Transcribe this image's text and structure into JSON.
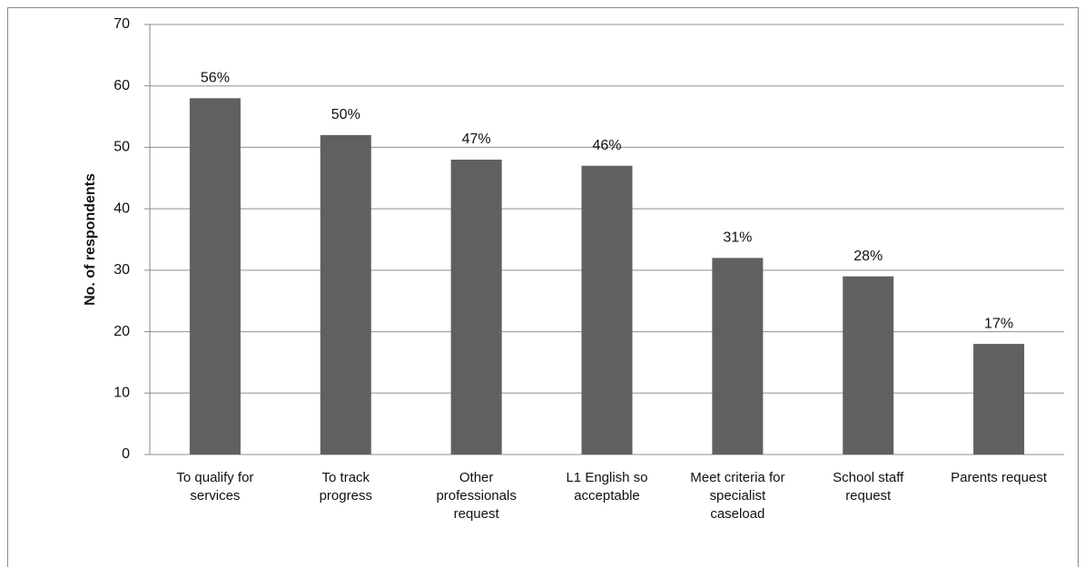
{
  "chart_data": {
    "type": "bar",
    "y_axis_label": "No. of respondents",
    "categories": [
      [
        "To qualify for",
        "services"
      ],
      [
        "To track",
        "progress"
      ],
      [
        "Other",
        "professionals",
        "request"
      ],
      [
        "L1 English so",
        "acceptable"
      ],
      [
        "Meet criteria for",
        "specialist",
        "caseload"
      ],
      [
        "School staff",
        "request"
      ],
      [
        "Parents request"
      ]
    ],
    "values": [
      58,
      52,
      48,
      47,
      32,
      29,
      18
    ],
    "annotations": [
      "56%",
      "50%",
      "47%",
      "46%",
      "31%",
      "28%",
      "17%"
    ],
    "color": "#606060",
    "ylim": [
      0,
      70
    ],
    "yticks": [
      0,
      10,
      20,
      30,
      40,
      50,
      60,
      70
    ],
    "grid": true
  }
}
